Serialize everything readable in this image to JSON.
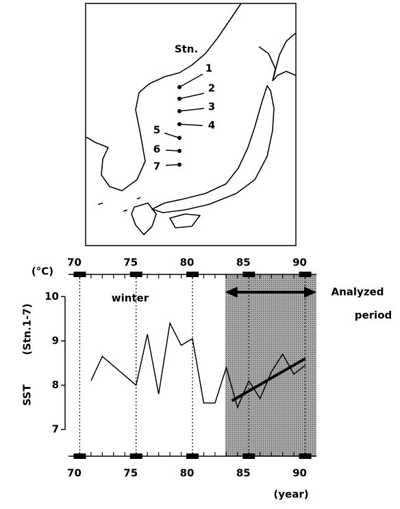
{
  "map": {
    "stations_label": "Stn.",
    "stations": [
      "1",
      "2",
      "3",
      "4",
      "5",
      "6",
      "7"
    ]
  },
  "chart_data": {
    "type": "line",
    "y_unit": "(°C)",
    "annotation": "winter",
    "ylabel": "SST",
    "ylabel_sub": "(Stn.1-7)",
    "xlabel": "(year)",
    "analyzed_label": [
      "Analyzed",
      "period"
    ],
    "analyzed_range": [
      82.9,
      91
    ],
    "xlim": [
      69,
      91
    ],
    "ylim": [
      6.4,
      10.5
    ],
    "xticks": [
      70,
      75,
      80,
      85,
      90
    ],
    "xminorticks": [
      70,
      71,
      72,
      73,
      74,
      75,
      76,
      77,
      78,
      79,
      80,
      81,
      82,
      83,
      84,
      85,
      86,
      87,
      88,
      89,
      90
    ],
    "yticks": [
      7,
      8,
      9,
      10
    ],
    "dotted_tick_lines": true,
    "series": [
      {
        "color": "#000000",
        "width": 1.5,
        "x": [
          71,
          72,
          75,
          76,
          77,
          78,
          79,
          80,
          81,
          82,
          83,
          84,
          85,
          86,
          87,
          88,
          89,
          90
        ],
        "values": [
          8.1,
          8.65,
          8.0,
          9.15,
          7.8,
          9.4,
          8.9,
          9.05,
          7.6,
          7.6,
          8.4,
          7.5,
          8.1,
          7.7,
          8.3,
          8.7,
          8.25,
          8.45
        ]
      },
      {
        "color": "#000000",
        "width": 4,
        "x": [
          83.5,
          90
        ],
        "values": [
          7.65,
          8.6
        ]
      }
    ]
  }
}
